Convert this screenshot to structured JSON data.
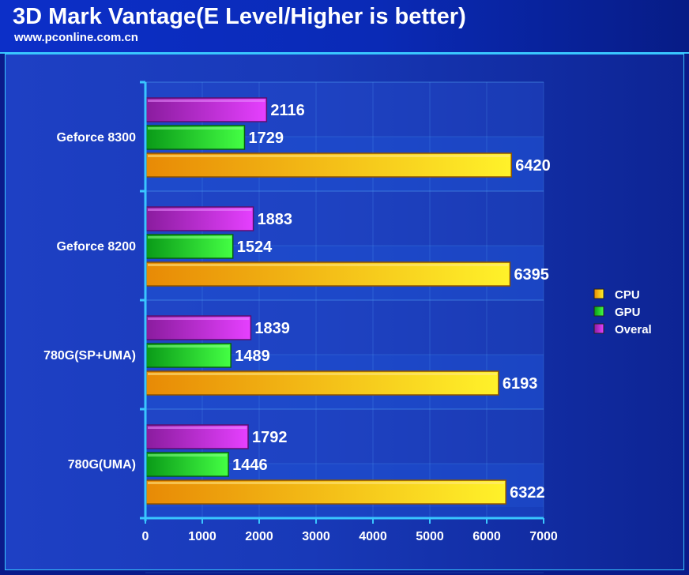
{
  "header": {
    "title": "3D Mark Vantage(E Level/Higher is better)",
    "subtitle": "www.pconline.com.cn"
  },
  "chart_data": {
    "type": "bar",
    "orientation": "horizontal",
    "title": "3D Mark Vantage(E Level/Higher is better)",
    "subtitle": "www.pconline.com.cn",
    "categories": [
      "Geforce 8300",
      "Geforce 8200",
      "780G(SP+UMA)",
      "780G(UMA)"
    ],
    "series": [
      {
        "name": "Overal",
        "color": "#cc33dd",
        "values": [
          2116,
          1883,
          1839,
          1792
        ]
      },
      {
        "name": "GPU",
        "color": "#22cc22",
        "values": [
          1729,
          1524,
          1489,
          1446
        ]
      },
      {
        "name": "CPU",
        "color": "#f5b400",
        "values": [
          6420,
          6395,
          6193,
          6322
        ]
      }
    ],
    "legend": {
      "position": "right",
      "items": [
        {
          "name": "CPU",
          "color": "#f5b400"
        },
        {
          "name": "GPU",
          "color": "#22cc22"
        },
        {
          "name": "Overal",
          "color": "#cc33dd"
        }
      ]
    },
    "xlim": [
      0,
      7000
    ],
    "xticks": [
      0,
      1000,
      2000,
      3000,
      4000,
      5000,
      6000,
      7000
    ],
    "grid": true,
    "xlabel": "",
    "ylabel": ""
  }
}
